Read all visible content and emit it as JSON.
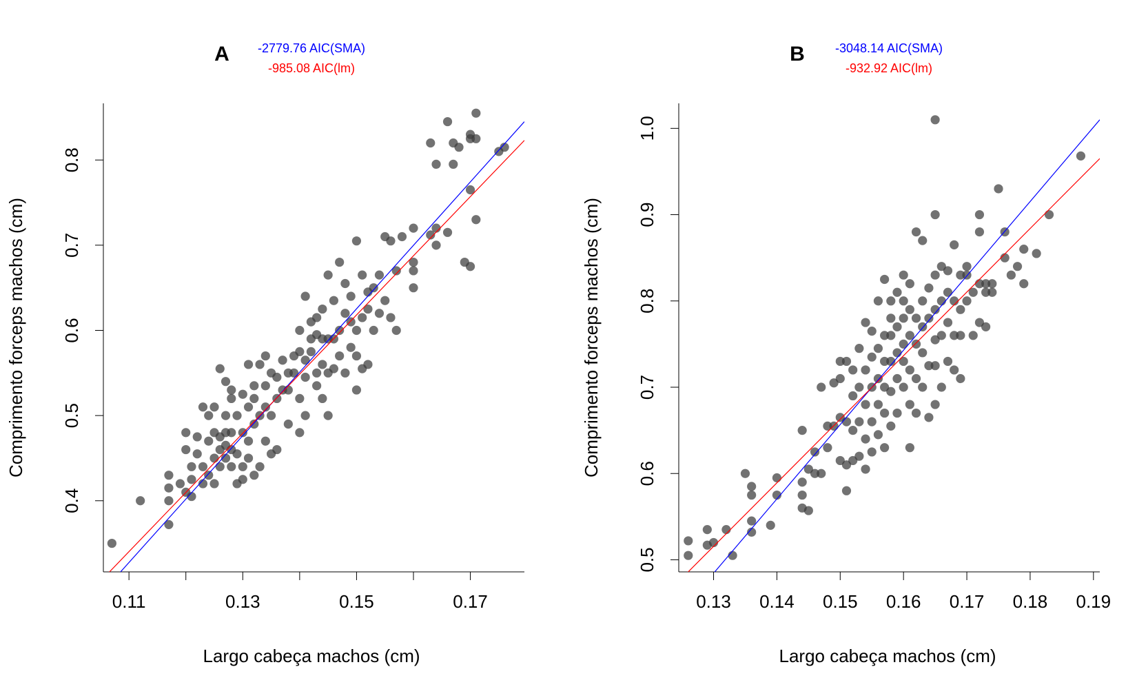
{
  "chart_data": [
    {
      "type": "scatter",
      "panel_label": "A",
      "annotations": [
        {
          "text": "-2779.76 AIC(SMA)",
          "color": "#0000ff"
        },
        {
          "text": "-985.08 AIC(lm)",
          "color": "#ff0000"
        }
      ],
      "xlabel": "Largo cabeça machos (cm)",
      "ylabel": "Comprimento forceps machos (cm)",
      "xlim": [
        0.1055,
        0.1795
      ],
      "ylim": [
        0.3165,
        0.8665
      ],
      "xticks": [
        0.11,
        0.13,
        0.15,
        0.17
      ],
      "xtick_labels": [
        "0.11",
        "0.13",
        "0.15",
        "0.17"
      ],
      "xticks_minor": [
        0.12,
        0.14,
        0.16
      ],
      "yticks": [
        0.4,
        0.5,
        0.6,
        0.7,
        0.8
      ],
      "ytick_labels": [
        "0.4",
        "0.5",
        "0.6",
        "0.7",
        "0.8"
      ],
      "grid": false,
      "point_color": "#3c3c3c",
      "lines": [
        {
          "name": "SMA",
          "color": "#0000ff",
          "x": [
            0.1055,
            0.1795
          ],
          "y": [
            0.294,
            0.845
          ]
        },
        {
          "name": "lm",
          "color": "#ff0000",
          "x": [
            0.1055,
            0.1795
          ],
          "y": [
            0.309,
            0.823
          ]
        }
      ],
      "points": {
        "x": [
          0.107,
          0.112,
          0.117,
          0.117,
          0.117,
          0.117,
          0.119,
          0.12,
          0.12,
          0.12,
          0.121,
          0.121,
          0.121,
          0.122,
          0.122,
          0.123,
          0.123,
          0.123,
          0.124,
          0.124,
          0.124,
          0.125,
          0.125,
          0.125,
          0.125,
          0.126,
          0.126,
          0.126,
          0.126,
          0.127,
          0.127,
          0.127,
          0.127,
          0.127,
          0.128,
          0.128,
          0.128,
          0.128,
          0.128,
          0.129,
          0.129,
          0.129,
          0.13,
          0.13,
          0.13,
          0.13,
          0.131,
          0.131,
          0.131,
          0.131,
          0.132,
          0.132,
          0.132,
          0.132,
          0.133,
          0.133,
          0.133,
          0.134,
          0.134,
          0.134,
          0.134,
          0.135,
          0.135,
          0.135,
          0.136,
          0.136,
          0.136,
          0.137,
          0.137,
          0.138,
          0.138,
          0.138,
          0.139,
          0.139,
          0.14,
          0.14,
          0.14,
          0.14,
          0.141,
          0.141,
          0.141,
          0.141,
          0.142,
          0.142,
          0.142,
          0.143,
          0.143,
          0.143,
          0.143,
          0.144,
          0.144,
          0.144,
          0.144,
          0.145,
          0.145,
          0.145,
          0.145,
          0.146,
          0.146,
          0.146,
          0.147,
          0.147,
          0.147,
          0.148,
          0.148,
          0.148,
          0.149,
          0.149,
          0.149,
          0.15,
          0.15,
          0.15,
          0.15,
          0.151,
          0.151,
          0.151,
          0.152,
          0.152,
          0.152,
          0.153,
          0.153,
          0.154,
          0.154,
          0.155,
          0.155,
          0.156,
          0.156,
          0.157,
          0.157,
          0.158,
          0.16,
          0.16,
          0.16,
          0.16,
          0.163,
          0.163,
          0.164,
          0.164,
          0.164,
          0.166,
          0.166,
          0.167,
          0.167,
          0.168,
          0.169,
          0.17,
          0.17,
          0.17,
          0.17,
          0.171,
          0.171,
          0.171,
          0.175,
          0.176
        ],
        "y": [
          0.35,
          0.4,
          0.372,
          0.4,
          0.415,
          0.43,
          0.42,
          0.41,
          0.46,
          0.48,
          0.405,
          0.425,
          0.44,
          0.455,
          0.475,
          0.42,
          0.44,
          0.51,
          0.43,
          0.47,
          0.5,
          0.42,
          0.45,
          0.48,
          0.51,
          0.44,
          0.46,
          0.475,
          0.555,
          0.45,
          0.465,
          0.48,
          0.5,
          0.54,
          0.44,
          0.46,
          0.48,
          0.52,
          0.53,
          0.42,
          0.455,
          0.5,
          0.425,
          0.44,
          0.48,
          0.525,
          0.45,
          0.47,
          0.51,
          0.56,
          0.43,
          0.49,
          0.52,
          0.535,
          0.44,
          0.5,
          0.56,
          0.47,
          0.51,
          0.535,
          0.57,
          0.455,
          0.5,
          0.55,
          0.46,
          0.52,
          0.545,
          0.53,
          0.565,
          0.49,
          0.53,
          0.55,
          0.55,
          0.57,
          0.48,
          0.52,
          0.575,
          0.6,
          0.5,
          0.545,
          0.565,
          0.64,
          0.575,
          0.59,
          0.61,
          0.535,
          0.55,
          0.595,
          0.615,
          0.52,
          0.56,
          0.59,
          0.625,
          0.5,
          0.55,
          0.59,
          0.665,
          0.555,
          0.59,
          0.635,
          0.57,
          0.6,
          0.68,
          0.55,
          0.62,
          0.655,
          0.58,
          0.61,
          0.64,
          0.53,
          0.57,
          0.6,
          0.705,
          0.555,
          0.615,
          0.665,
          0.56,
          0.625,
          0.645,
          0.6,
          0.65,
          0.62,
          0.665,
          0.635,
          0.71,
          0.615,
          0.705,
          0.6,
          0.67,
          0.71,
          0.65,
          0.67,
          0.72,
          0.68,
          0.712,
          0.82,
          0.7,
          0.72,
          0.795,
          0.715,
          0.845,
          0.795,
          0.82,
          0.815,
          0.68,
          0.675,
          0.765,
          0.825,
          0.83,
          0.73,
          0.825,
          0.855,
          0.81,
          0.815
        ]
      }
    },
    {
      "type": "scatter",
      "panel_label": "B",
      "annotations": [
        {
          "text": "-3048.14 AIC(SMA)",
          "color": "#0000ff"
        },
        {
          "text": "-932.92 AIC(lm)",
          "color": "#ff0000"
        }
      ],
      "xlabel": "Largo cabeça machos (cm)",
      "ylabel": "Comprimento forceps machos (cm)",
      "xlim": [
        0.1245,
        0.191
      ],
      "ylim": [
        0.486,
        1.029
      ],
      "xticks": [
        0.13,
        0.14,
        0.15,
        0.16,
        0.17,
        0.18,
        0.19
      ],
      "xtick_labels": [
        "0.13",
        "0.14",
        "0.15",
        "0.16",
        "0.17",
        "0.18",
        "0.19"
      ],
      "xticks_minor": [],
      "yticks": [
        0.5,
        0.6,
        0.7,
        0.8,
        0.9,
        1.0
      ],
      "ytick_labels": [
        "0.5",
        "0.6",
        "0.7",
        "0.8",
        "0.9",
        "1.0"
      ],
      "grid": false,
      "point_color": "#3c3c3c",
      "lines": [
        {
          "name": "SMA",
          "color": "#0000ff",
          "x": [
            0.1245,
            0.191
          ],
          "y": [
            0.437,
            1.01
          ]
        },
        {
          "name": "lm",
          "color": "#ff0000",
          "x": [
            0.1245,
            0.191
          ],
          "y": [
            0.475,
            0.965
          ]
        }
      ],
      "points": {
        "x": [
          0.126,
          0.126,
          0.129,
          0.129,
          0.13,
          0.132,
          0.133,
          0.135,
          0.136,
          0.136,
          0.136,
          0.136,
          0.139,
          0.14,
          0.14,
          0.144,
          0.144,
          0.144,
          0.144,
          0.145,
          0.145,
          0.146,
          0.146,
          0.147,
          0.147,
          0.148,
          0.148,
          0.149,
          0.149,
          0.15,
          0.15,
          0.15,
          0.15,
          0.151,
          0.151,
          0.151,
          0.151,
          0.152,
          0.152,
          0.152,
          0.152,
          0.153,
          0.153,
          0.153,
          0.153,
          0.154,
          0.154,
          0.154,
          0.154,
          0.154,
          0.155,
          0.155,
          0.155,
          0.155,
          0.155,
          0.156,
          0.156,
          0.156,
          0.156,
          0.156,
          0.157,
          0.157,
          0.157,
          0.157,
          0.157,
          0.157,
          0.158,
          0.158,
          0.158,
          0.158,
          0.158,
          0.158,
          0.159,
          0.159,
          0.159,
          0.159,
          0.159,
          0.16,
          0.16,
          0.16,
          0.16,
          0.16,
          0.16,
          0.161,
          0.161,
          0.161,
          0.161,
          0.161,
          0.161,
          0.162,
          0.162,
          0.162,
          0.162,
          0.162,
          0.163,
          0.163,
          0.163,
          0.163,
          0.163,
          0.164,
          0.164,
          0.164,
          0.164,
          0.165,
          0.165,
          0.165,
          0.165,
          0.165,
          0.165,
          0.165,
          0.166,
          0.166,
          0.166,
          0.166,
          0.167,
          0.167,
          0.167,
          0.167,
          0.168,
          0.168,
          0.168,
          0.168,
          0.169,
          0.169,
          0.169,
          0.169,
          0.17,
          0.17,
          0.17,
          0.171,
          0.171,
          0.172,
          0.172,
          0.172,
          0.172,
          0.173,
          0.173,
          0.173,
          0.174,
          0.174,
          0.175,
          0.176,
          0.176,
          0.177,
          0.178,
          0.179,
          0.179,
          0.181,
          0.183,
          0.188
        ],
        "y": [
          0.505,
          0.522,
          0.517,
          0.535,
          0.52,
          0.535,
          0.505,
          0.6,
          0.532,
          0.545,
          0.575,
          0.585,
          0.54,
          0.575,
          0.595,
          0.56,
          0.575,
          0.59,
          0.65,
          0.557,
          0.605,
          0.6,
          0.625,
          0.6,
          0.7,
          0.63,
          0.655,
          0.655,
          0.705,
          0.615,
          0.665,
          0.71,
          0.73,
          0.58,
          0.61,
          0.66,
          0.73,
          0.615,
          0.65,
          0.69,
          0.72,
          0.62,
          0.66,
          0.7,
          0.745,
          0.605,
          0.64,
          0.68,
          0.72,
          0.775,
          0.625,
          0.66,
          0.7,
          0.735,
          0.765,
          0.645,
          0.68,
          0.71,
          0.745,
          0.8,
          0.63,
          0.67,
          0.7,
          0.73,
          0.76,
          0.825,
          0.655,
          0.695,
          0.73,
          0.76,
          0.78,
          0.8,
          0.67,
          0.71,
          0.74,
          0.77,
          0.81,
          0.7,
          0.73,
          0.75,
          0.78,
          0.8,
          0.83,
          0.63,
          0.68,
          0.72,
          0.76,
          0.79,
          0.82,
          0.67,
          0.71,
          0.75,
          0.78,
          0.88,
          0.7,
          0.74,
          0.77,
          0.8,
          0.87,
          0.665,
          0.725,
          0.78,
          0.815,
          0.68,
          0.725,
          0.755,
          0.79,
          0.83,
          0.9,
          1.01,
          0.7,
          0.76,
          0.8,
          0.84,
          0.73,
          0.775,
          0.81,
          0.835,
          0.72,
          0.76,
          0.8,
          0.865,
          0.71,
          0.76,
          0.79,
          0.83,
          0.8,
          0.83,
          0.84,
          0.76,
          0.81,
          0.775,
          0.82,
          0.88,
          0.9,
          0.77,
          0.81,
          0.82,
          0.81,
          0.82,
          0.93,
          0.85,
          0.88,
          0.83,
          0.84,
          0.82,
          0.86,
          0.855,
          0.9,
          0.968
        ]
      }
    }
  ]
}
